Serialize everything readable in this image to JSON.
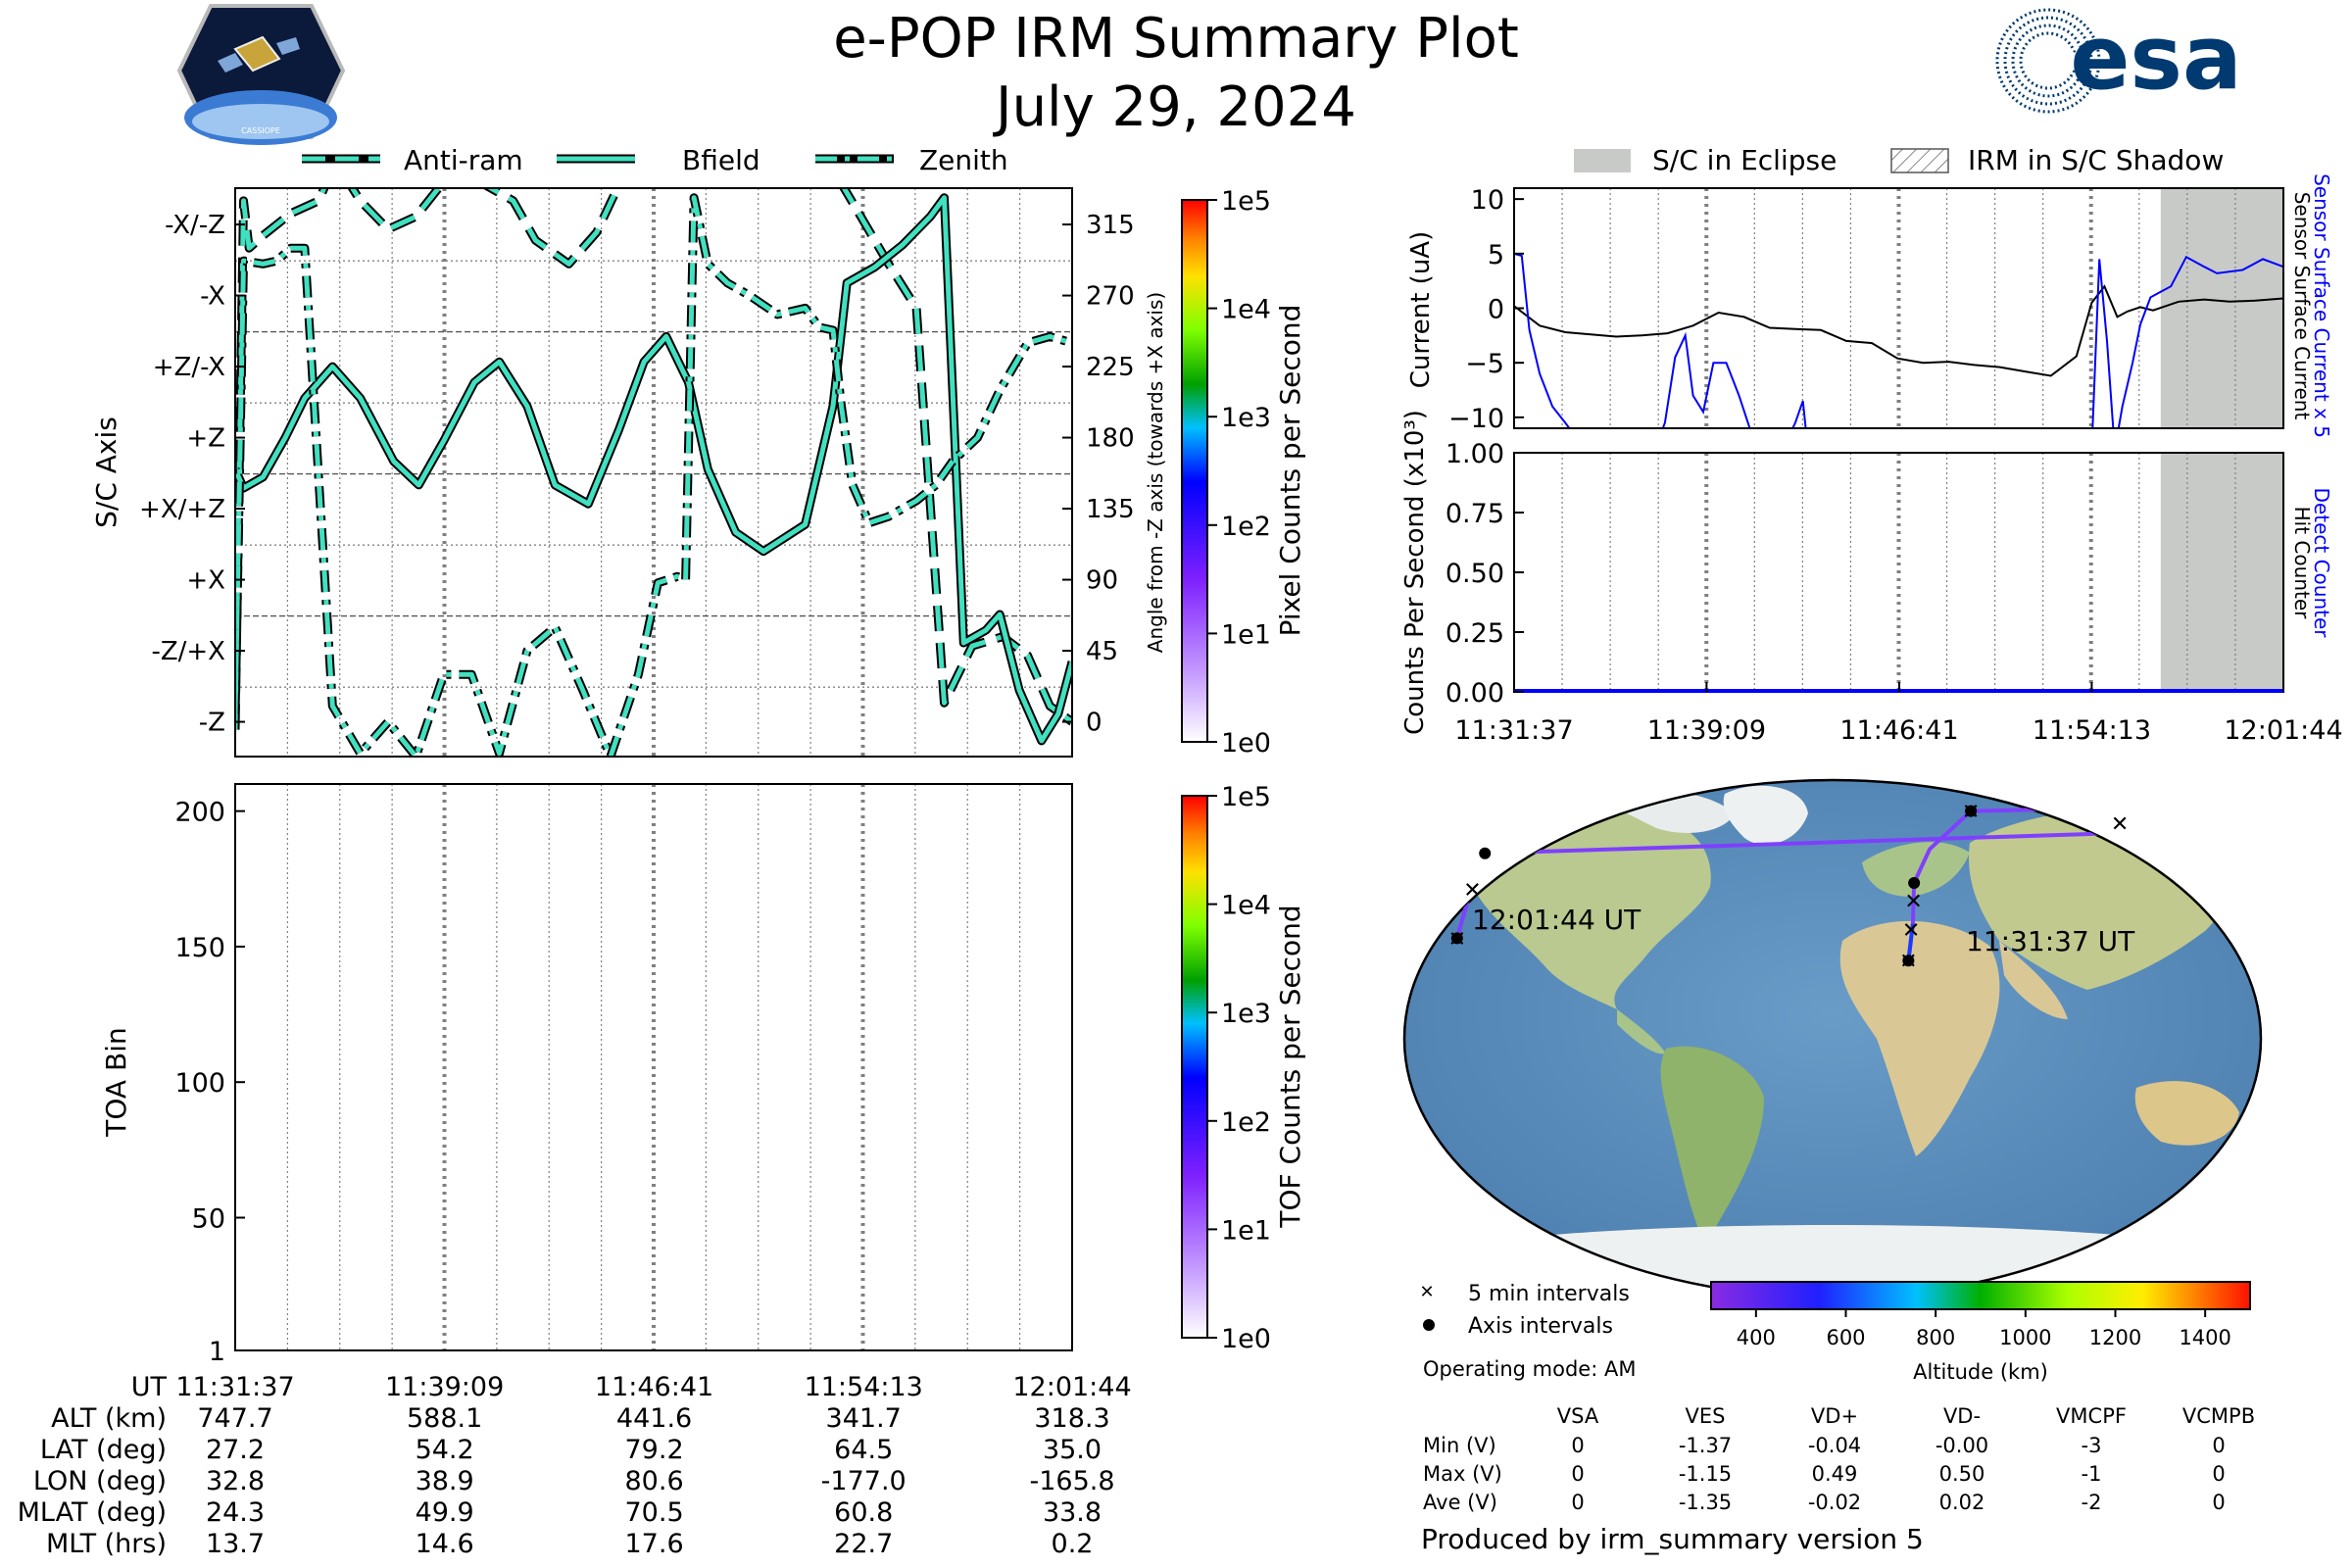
{
  "header": {
    "title": "e-POP IRM Summary Plot",
    "date": "July 29, 2024",
    "logo_left": "CASSIOPE",
    "logo_right": "esa"
  },
  "colors": {
    "trace_outer": "#000000",
    "trace_inner": "#40e0c0",
    "current_sensor": "#0000ff",
    "current_surface": "#000000",
    "eclipse": "#c8cac8",
    "orbit_path": "#7f3fff",
    "gridline": "#808080"
  },
  "chart_data": [
    {
      "id": "attitude",
      "type": "line",
      "legend": [
        "Anti-ram",
        "Bfield",
        "Zenith"
      ],
      "legend_styles": [
        "dashed",
        "solid",
        "dashdot"
      ],
      "ylabel_left": "S/C Axis",
      "ylabel_right": "Angle from -Z axis (towards +X axis)",
      "left_ticks": [
        "-X/-Z",
        "-X",
        "+Z/-X",
        "+Z",
        "+X/+Z",
        "+X",
        "-Z/+X",
        "-Z"
      ],
      "right_ticks": [
        "315",
        "270",
        "225",
        "180",
        "135",
        "90",
        "45",
        "0"
      ],
      "ylim": [
        -22,
        338
      ],
      "x_minutes": [
        0,
        30.1
      ],
      "series": [
        {
          "name": "Anti-ram",
          "style": "dashed",
          "x": [
            0,
            0.3,
            0.5,
            1.0,
            2.0,
            3.0,
            3.5,
            4.0,
            4.5,
            5.5,
            6.5,
            7.4,
            8.0,
            9.0,
            10.0,
            10.8,
            12.0,
            13.0,
            13.8,
            14.5,
            15.2,
            15.8,
            16.5,
            17.6,
            18.5,
            19.5,
            20.5,
            21.5,
            22.5,
            23.5,
            24.5,
            25.5,
            26.5,
            27.6,
            28.5,
            29.3,
            30.1
          ],
          "y": [
            -5,
            330,
            300,
            308,
            322,
            330,
            350,
            344,
            330,
            312,
            320,
            340,
            350,
            340,
            330,
            305,
            290,
            310,
            340,
            356,
            360,
            360,
            355,
            345,
            358,
            365,
            360,
            350,
            320,
            290,
            262,
            12,
            48,
            54,
            42,
            10,
            0
          ]
        },
        {
          "name": "Bfield",
          "style": "solid",
          "x": [
            0,
            0.3,
            1.0,
            1.8,
            2.5,
            3.5,
            4.5,
            5.7,
            6.6,
            7.5,
            8.6,
            9.5,
            10.5,
            11.5,
            12.7,
            13.8,
            14.7,
            15.5,
            16.3,
            17.0,
            18.0,
            19.0,
            20.5,
            21.5,
            22.0,
            23.0,
            24.0,
            25.0,
            25.5,
            26.2,
            27.0,
            27.5,
            28.2,
            29.0,
            29.6,
            30.1
          ],
          "y": [
            160,
            148,
            155,
            180,
            205,
            225,
            205,
            165,
            150,
            178,
            215,
            228,
            200,
            150,
            138,
            185,
            228,
            244,
            215,
            160,
            120,
            108,
            125,
            200,
            278,
            288,
            302,
            320,
            332,
            50,
            58,
            68,
            20,
            -12,
            5,
            38
          ]
        },
        {
          "name": "Zenith",
          "style": "dashdot",
          "x": [
            0,
            0.3,
            1.0,
            1.5,
            2.0,
            2.5,
            3.5,
            4.5,
            5.5,
            6.5,
            7.5,
            8.5,
            9.5,
            10.5,
            11.5,
            12.5,
            13.5,
            14.5,
            15.2,
            15.9,
            16.2,
            16.5,
            17.0,
            17.7,
            18.5,
            19.5,
            20.5,
            21.0,
            21.5,
            21.8,
            22.2,
            22.8,
            23.5,
            24.5,
            25.2,
            25.8,
            26.7,
            27.5,
            28.5,
            29.3,
            30.1
          ],
          "y": [
            5,
            292,
            290,
            292,
            300,
            300,
            10,
            -20,
            0,
            -22,
            30,
            30,
            -20,
            45,
            60,
            20,
            -22,
            30,
            88,
            92,
            90,
            332,
            290,
            278,
            270,
            258,
            262,
            250,
            248,
            200,
            150,
            126,
            130,
            140,
            150,
            165,
            180,
            210,
            240,
            244,
            240
          ]
        }
      ]
    },
    {
      "id": "pixel_colorbar",
      "type": "heatmap",
      "label": "Pixel Counts per Second",
      "ticks": [
        "1e5",
        "1e4",
        "1e3",
        "1e2",
        "1e1",
        "1e0"
      ],
      "scale": "log"
    },
    {
      "id": "toa",
      "type": "heatmap",
      "ylabel": "TOA Bin",
      "yticks": [
        200,
        150,
        100,
        50,
        1
      ],
      "ylim": [
        1,
        210
      ],
      "values": []
    },
    {
      "id": "tof_colorbar",
      "type": "heatmap",
      "label": "TOF Counts per Second",
      "ticks": [
        "1e5",
        "1e4",
        "1e3",
        "1e2",
        "1e1",
        "1e0"
      ],
      "scale": "log"
    },
    {
      "id": "current",
      "type": "line",
      "ylabel": "Current (uA)",
      "yticks": [
        "10",
        "5",
        "0",
        "−5",
        "−10"
      ],
      "ylim": [
        -11,
        11
      ],
      "right_labels": [
        "Sensor Surface Current x 5",
        "Sensor Surface Current"
      ],
      "shading_legend": [
        "S/C in Eclipse",
        "IRM in S/C Shadow"
      ],
      "eclipse_x_minutes": [
        25.3,
        30.1
      ],
      "series": [
        {
          "name": "Sensor Surface Current",
          "x": [
            0,
            1,
            2,
            3,
            4,
            5,
            6,
            7,
            8,
            9,
            10,
            11,
            12,
            13,
            14,
            15,
            16,
            17,
            18,
            19,
            20,
            21,
            22,
            22.6,
            23.1,
            23.6,
            24.0,
            24.5,
            25,
            26,
            27,
            28,
            29,
            30.1
          ],
          "y": [
            0.2,
            -1.6,
            -2.2,
            -2.4,
            -2.6,
            -2.5,
            -2.3,
            -1.6,
            -0.4,
            -0.8,
            -1.8,
            -1.9,
            -2.0,
            -3.0,
            -3.2,
            -4.6,
            -5.0,
            -4.9,
            -5.2,
            -5.4,
            -5.8,
            -6.2,
            -4.4,
            0.5,
            2.0,
            -0.8,
            -0.3,
            0.1,
            -0.2,
            0.6,
            0.8,
            0.6,
            0.7,
            0.9
          ]
        },
        {
          "name": "Sensor Surface Current x 5",
          "x": [
            0,
            0.3,
            0.6,
            1.0,
            1.5,
            2.0,
            2.8,
            5.5,
            5.9,
            6.3,
            6.7,
            7.0,
            7.4,
            7.8,
            8.3,
            8.8,
            9.5,
            10.5,
            11.0,
            11.3,
            11.5,
            12.5,
            22.6,
            22.9,
            23.2,
            23.5,
            23.8,
            24.2,
            24.5,
            24.9,
            25.3,
            25.7,
            26.3,
            27.0,
            27.5,
            28.5,
            29.3,
            30.1
          ],
          "y": [
            5,
            4.8,
            -2,
            -6,
            -9,
            -10.5,
            -13,
            -13,
            -10.5,
            -4.5,
            -2.5,
            -8,
            -9.5,
            -5,
            -5,
            -8,
            -13,
            -13,
            -10.5,
            -8.5,
            -13,
            -13,
            -13,
            4.5,
            -3,
            -13,
            -9,
            -5,
            -1.5,
            1,
            1.5,
            2,
            4.7,
            3.8,
            3.2,
            3.5,
            4.5,
            3.8
          ]
        }
      ]
    },
    {
      "id": "counts",
      "type": "line",
      "ylabel": "Counts Per Second (x10³)",
      "yticks": [
        "1.00",
        "0.75",
        "0.50",
        "0.25",
        "0.00"
      ],
      "ylim": [
        0,
        1
      ],
      "right_labels": [
        "Detect Counter",
        "Hit Counter"
      ],
      "eclipse_x_minutes": [
        25.3,
        30.1
      ],
      "series": [
        {
          "name": "Detect Counter",
          "x": [
            0,
            30.1
          ],
          "y": [
            0,
            0
          ]
        },
        {
          "name": "Hit Counter",
          "x": [
            0,
            30.1
          ],
          "y": [
            0,
            0
          ]
        }
      ],
      "x_tick_labels": [
        "11:31:37",
        "11:39:09",
        "11:46:41",
        "11:54:13",
        "12:01:44"
      ]
    }
  ],
  "time_table": {
    "row_labels": [
      "UT",
      "ALT (km)",
      "LAT (deg)",
      "LON (deg)",
      "MLAT (deg)",
      "MLT (hrs)"
    ],
    "columns": [
      [
        "11:31:37",
        "747.7",
        "27.2",
        "32.8",
        "24.3",
        "13.7"
      ],
      [
        "11:39:09",
        "588.1",
        "54.2",
        "38.9",
        "49.9",
        "14.6"
      ],
      [
        "11:46:41",
        "441.6",
        "79.2",
        "80.6",
        "70.5",
        "17.6"
      ],
      [
        "11:54:13",
        "341.7",
        "64.5",
        "-177.0",
        "60.8",
        "22.7"
      ],
      [
        "12:01:44",
        "318.3",
        "35.0",
        "-165.8",
        "33.8",
        "0.2"
      ]
    ]
  },
  "map": {
    "start_label": "11:31:37 UT",
    "end_label": "12:01:44 UT",
    "legend_interval": "5 min intervals",
    "legend_axis": "Axis intervals",
    "altitude_label": "Altitude (km)",
    "altitude_ticks": [
      "400",
      "600",
      "800",
      "1000",
      "1200",
      "1400"
    ],
    "altitude_range": [
      300,
      1500
    ],
    "track": [
      [
        32.8,
        27.2
      ],
      [
        34.0,
        32.0
      ],
      [
        36.0,
        40.0
      ],
      [
        38.9,
        54.2
      ],
      [
        50.0,
        66.0
      ],
      [
        80.6,
        79.2
      ],
      [
        140.0,
        80.0
      ],
      [
        175.0,
        72.0
      ],
      [
        -177.0,
        64.5
      ],
      [
        -172.0,
        55.0
      ],
      [
        -168.0,
        45.0
      ],
      [
        -165.8,
        35.0
      ]
    ],
    "five_min_marks": [
      [
        32.8,
        27.2
      ],
      [
        35.0,
        38.0
      ],
      [
        37.5,
        48.0
      ],
      [
        80.6,
        79.2
      ],
      [
        160.0,
        75.0
      ],
      [
        -170.0,
        52.0
      ],
      [
        -165.8,
        35.0
      ]
    ],
    "axis_marks": [
      [
        32.8,
        27.2
      ],
      [
        38.9,
        54.2
      ],
      [
        80.6,
        79.2
      ],
      [
        -177.0,
        64.5
      ],
      [
        -165.8,
        35.0
      ]
    ]
  },
  "operating_mode": "Operating mode: AM",
  "voltage_table": {
    "headers": [
      "",
      "VSA",
      "VES",
      "VD+",
      "VD-",
      "VMCPF",
      "VCMPB"
    ],
    "rows": [
      [
        "Min (V)",
        "0",
        "-1.37",
        "-0.04",
        "-0.00",
        "-3",
        "0"
      ],
      [
        "Max (V)",
        "0",
        "-1.15",
        "0.49",
        "0.50",
        "-1",
        "0"
      ],
      [
        "Ave (V)",
        "0",
        "-1.35",
        "-0.02",
        "0.02",
        "-2",
        "0"
      ]
    ]
  },
  "footer": "Produced by irm_summary version 5"
}
